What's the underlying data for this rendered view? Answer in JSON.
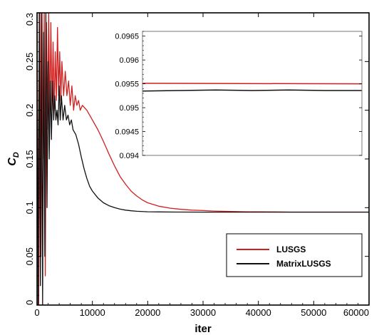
{
  "chart_data": [
    {
      "type": "line",
      "xlabel": "iter",
      "ylabel": "C",
      "ylabel_subscript": "D",
      "xlim": [
        0,
        60000
      ],
      "ylim": [
        0,
        0.3
      ],
      "xticks": [
        0,
        10000,
        20000,
        30000,
        40000,
        50000,
        60000
      ],
      "xtick_labels": [
        "0",
        "10000",
        "20000",
        "30000",
        "40000",
        "50000",
        "60000"
      ],
      "yticks": [
        0,
        0.05,
        0.1,
        0.15,
        0.2,
        0.25,
        0.3
      ],
      "ytick_labels": [
        "0",
        "0.05",
        "0.1",
        "0.15",
        "0.2",
        "0.25",
        "0.3"
      ],
      "legend_position": "bottom-right",
      "grid": false,
      "series": [
        {
          "name": "LUSGS",
          "color": "#d11f1f",
          "x": [
            0,
            300,
            500,
            700,
            900,
            1100,
            1300,
            1500,
            1700,
            1900,
            2100,
            2300,
            2500,
            2700,
            2900,
            3100,
            3300,
            3500,
            3700,
            3900,
            4100,
            4300,
            4500,
            4800,
            5100,
            5400,
            5700,
            6000,
            6300,
            6600,
            6900,
            7200,
            7500,
            7800,
            8200,
            9000,
            10000,
            11000,
            12000,
            13000,
            14000,
            15000,
            16000,
            17000,
            18000,
            19000,
            20000,
            22000,
            24000,
            26000,
            28000,
            30000,
            32000,
            35000,
            38000,
            40000,
            43000,
            46000,
            50000,
            55000,
            60000
          ],
          "y": [
            0.3,
            0.0,
            0.3,
            0.05,
            0.3,
            0.15,
            0.3,
            0.03,
            0.29,
            0.18,
            0.3,
            0.19,
            0.29,
            0.2,
            0.27,
            0.2,
            0.26,
            0.21,
            0.285,
            0.215,
            0.26,
            0.21,
            0.25,
            0.215,
            0.24,
            0.215,
            0.23,
            0.205,
            0.225,
            0.2,
            0.215,
            0.205,
            0.21,
            0.2,
            0.205,
            0.2,
            0.19,
            0.18,
            0.168,
            0.155,
            0.143,
            0.132,
            0.124,
            0.117,
            0.112,
            0.108,
            0.105,
            0.1015,
            0.0995,
            0.0983,
            0.0975,
            0.097,
            0.0965,
            0.0961,
            0.0958,
            0.0957,
            0.0956,
            0.0955,
            0.0955,
            0.0955,
            0.0955
          ]
        },
        {
          "name": "MatrixLUSGS",
          "color": "#111111",
          "x": [
            0,
            200,
            400,
            600,
            800,
            1000,
            1200,
            1400,
            1600,
            1800,
            2000,
            2200,
            2400,
            2600,
            2800,
            3000,
            3200,
            3400,
            3600,
            3800,
            4000,
            4200,
            4400,
            4700,
            5000,
            5300,
            5600,
            5900,
            6200,
            6500,
            7000,
            7500,
            8000,
            8500,
            9000,
            9500,
            10000,
            11000,
            12000,
            13000,
            14000,
            15000,
            16000,
            17000,
            18000,
            20000,
            22000,
            25000,
            30000,
            40000,
            50000,
            60000
          ],
          "y": [
            0.3,
            0.0,
            0.3,
            0.02,
            0.3,
            0.0,
            0.28,
            0.05,
            0.3,
            0.1,
            0.25,
            0.15,
            0.23,
            0.17,
            0.23,
            0.19,
            0.215,
            0.19,
            0.2,
            0.185,
            0.225,
            0.19,
            0.215,
            0.19,
            0.205,
            0.19,
            0.195,
            0.185,
            0.19,
            0.18,
            0.175,
            0.165,
            0.152,
            0.14,
            0.13,
            0.122,
            0.117,
            0.11,
            0.105,
            0.102,
            0.1,
            0.0985,
            0.0975,
            0.0968,
            0.0963,
            0.0958,
            0.0956,
            0.0955,
            0.0954,
            0.0954,
            0.0954,
            0.0954
          ]
        }
      ]
    },
    {
      "type": "line",
      "xlim": [
        0,
        60000
      ],
      "ylim": [
        0.094,
        0.0966
      ],
      "yticks": [
        0.094,
        0.0945,
        0.095,
        0.0955,
        0.096,
        0.0965
      ],
      "ytick_labels": [
        "0.094",
        "0.0945",
        "0.095",
        "0.0955",
        "0.096",
        "0.0965"
      ],
      "grid": false,
      "series": [
        {
          "name": "LUSGS",
          "color": "#d11f1f",
          "x": [
            0,
            60000
          ],
          "y": [
            0.09551,
            0.0955
          ]
        },
        {
          "name": "MatrixLUSGS",
          "color": "#111111",
          "x": [
            0,
            10000,
            20000,
            30000,
            40000,
            50000,
            60000
          ],
          "y": [
            0.09535,
            0.09536,
            0.09537,
            0.09536,
            0.09537,
            0.09536,
            0.09536
          ]
        }
      ]
    }
  ]
}
